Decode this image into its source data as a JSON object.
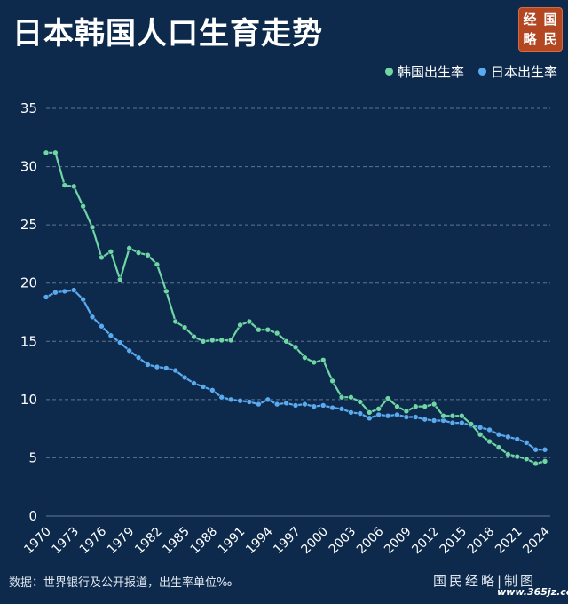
{
  "title": "日本韩国人口生育走势",
  "seal": {
    "chars": [
      "经",
      "国",
      "略",
      "民"
    ],
    "color": "#b34722"
  },
  "chart_data": {
    "type": "line",
    "title": "日本韩国人口生育走势",
    "xlabel": "",
    "ylabel": "",
    "ylim": [
      0,
      35
    ],
    "yticks": [
      0,
      5,
      10,
      15,
      20,
      25,
      30,
      35
    ],
    "xticks": [
      "1970",
      "1973",
      "1976",
      "1979",
      "1982",
      "1985",
      "1988",
      "1991",
      "1994",
      "1997",
      "2000",
      "2003",
      "2006",
      "2009",
      "2012",
      "2015",
      "2018",
      "2021",
      "2024"
    ],
    "grid": "horizontal dashed",
    "legend_position": "top-right",
    "x": [
      1970,
      1971,
      1972,
      1973,
      1974,
      1975,
      1976,
      1977,
      1978,
      1979,
      1980,
      1981,
      1982,
      1983,
      1984,
      1985,
      1986,
      1987,
      1988,
      1989,
      1990,
      1991,
      1992,
      1993,
      1994,
      1995,
      1996,
      1997,
      1998,
      1999,
      2000,
      2001,
      2002,
      2003,
      2004,
      2005,
      2006,
      2007,
      2008,
      2009,
      2010,
      2011,
      2012,
      2013,
      2014,
      2015,
      2016,
      2017,
      2018,
      2019,
      2020,
      2021,
      2022,
      2023,
      2024
    ],
    "series": [
      {
        "name": "韩国出生率",
        "color": "#6fd6a4",
        "values": [
          31.2,
          31.2,
          28.4,
          28.3,
          26.6,
          24.8,
          22.2,
          22.7,
          20.3,
          23.0,
          22.6,
          22.4,
          21.6,
          19.3,
          16.7,
          16.2,
          15.4,
          15.0,
          15.1,
          15.1,
          15.1,
          16.4,
          16.7,
          16.0,
          16.0,
          15.7,
          15.0,
          14.5,
          13.6,
          13.2,
          13.4,
          11.6,
          10.2,
          10.2,
          9.8,
          8.9,
          9.2,
          10.1,
          9.4,
          9.0,
          9.4,
          9.4,
          9.6,
          8.6,
          8.6,
          8.6,
          7.9,
          7.0,
          6.4,
          5.9,
          5.3,
          5.1,
          4.9,
          4.5,
          4.7
        ]
      },
      {
        "name": "日本出生率",
        "color": "#5aaaf0",
        "values": [
          18.8,
          19.2,
          19.3,
          19.4,
          18.6,
          17.1,
          16.3,
          15.5,
          14.9,
          14.2,
          13.6,
          13.0,
          12.8,
          12.7,
          12.5,
          11.9,
          11.4,
          11.1,
          10.8,
          10.2,
          10.0,
          9.9,
          9.8,
          9.6,
          10.0,
          9.6,
          9.7,
          9.5,
          9.6,
          9.4,
          9.5,
          9.3,
          9.2,
          8.9,
          8.8,
          8.4,
          8.7,
          8.6,
          8.7,
          8.5,
          8.5,
          8.3,
          8.2,
          8.2,
          8.0,
          8.0,
          7.8,
          7.6,
          7.4,
          7.0,
          6.8,
          6.6,
          6.3,
          5.7,
          5.7
        ]
      }
    ]
  },
  "footer": {
    "source": "数据：世界银行及公开报道，出生率单位‰",
    "credit": "国民经略|制图",
    "watermark": "www.365jz.com"
  }
}
